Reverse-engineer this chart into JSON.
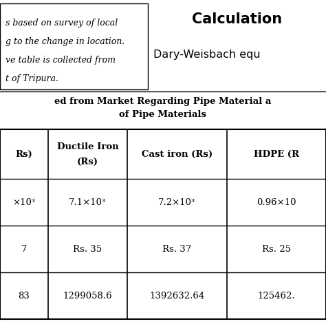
{
  "top_left_lines": [
    "s based on survey of local",
    "g to the change in location.",
    "ve table is collected from",
    "t of Tripura."
  ],
  "calc_title": "Calculation",
  "calc_subtitle": "Dary-Weisbach equ",
  "table_title1": "ed from Market Regarding Pipe Material a",
  "table_title2": "of Pipe Materials",
  "col_headers": [
    [
      "Rs)"
    ],
    [
      "Ductile Iron",
      "(Rs)"
    ],
    [
      "Cast iron (Rs)"
    ],
    [
      "HDPE (R"
    ]
  ],
  "row1": [
    "×10³",
    "7.1×10³",
    "7.2×10³",
    "0.96×10"
  ],
  "row2": [
    "7",
    "Rs. 35",
    "Rs. 37",
    "Rs. 25"
  ],
  "row3": [
    "83",
    "1299058.6",
    "1392632.64",
    "125462."
  ],
  "bg_color": "#ffffff",
  "border_color": "#000000",
  "text_color": "#000000",
  "fig_w": 4.74,
  "fig_h": 4.74,
  "dpi": 100
}
